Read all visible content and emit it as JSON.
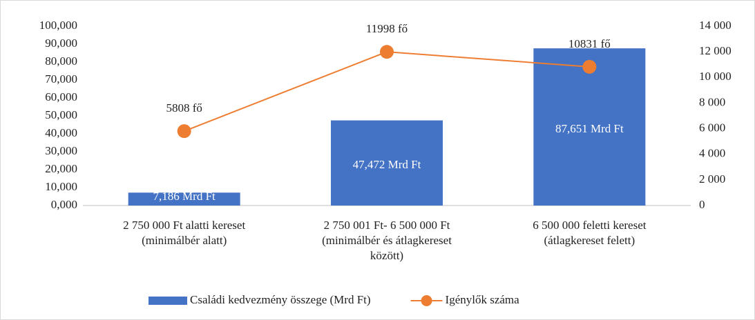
{
  "chart_data": {
    "type": "bar",
    "categories": [
      [
        "2 750 000 Ft alatti kereset",
        "(minimálbér alatt)"
      ],
      [
        "2 750 001 Ft- 6 500 000 Ft",
        "(minimálbér és átlagkereset",
        "között)"
      ],
      [
        "6 500 000 feletti kereset",
        "(átlagkereset felett)"
      ]
    ],
    "series": [
      {
        "name": "Családi kedvezmény összege (Mrd Ft)",
        "type": "bar",
        "color": "#4472c4",
        "values": [
          7.186,
          47.472,
          87.651
        ],
        "value_labels": [
          "7,186 Mrd Ft",
          "47,472 Mrd Ft",
          "87,651 Mrd Ft"
        ]
      },
      {
        "name": "Igénylők száma",
        "type": "line",
        "axis": "y2",
        "color": "#ed7d31",
        "values": [
          5808,
          11998,
          10831
        ],
        "value_labels": [
          "5808 fő",
          "11998 fő",
          "10831 fő"
        ]
      }
    ],
    "ylim": [
      0,
      100
    ],
    "yticks": [
      {
        "value": 0,
        "label": "0,000"
      },
      {
        "value": 10,
        "label": "10,000"
      },
      {
        "value": 20,
        "label": "20,000"
      },
      {
        "value": 30,
        "label": "30,000"
      },
      {
        "value": 40,
        "label": "40,000"
      },
      {
        "value": 50,
        "label": "50,000"
      },
      {
        "value": 60,
        "label": "60,000"
      },
      {
        "value": 70,
        "label": "70,000"
      },
      {
        "value": 80,
        "label": "80,000"
      },
      {
        "value": 90,
        "label": "90,000"
      },
      {
        "value": 100,
        "label": "100,000"
      }
    ],
    "y2lim": [
      0,
      14000
    ],
    "y2ticks": [
      0,
      {
        "value": 2000,
        "label": "2 000"
      },
      {
        "value": 4000,
        "label": "4 000"
      },
      {
        "value": 6000,
        "label": "6 000"
      },
      {
        "value": 8000,
        "label": "8 000"
      },
      {
        "value": 10000,
        "label": "10 000"
      },
      {
        "value": 12000,
        "label": "12 000"
      },
      {
        "value": 14000,
        "label": "14 000"
      }
    ],
    "grid": false,
    "legend": "bottom"
  }
}
